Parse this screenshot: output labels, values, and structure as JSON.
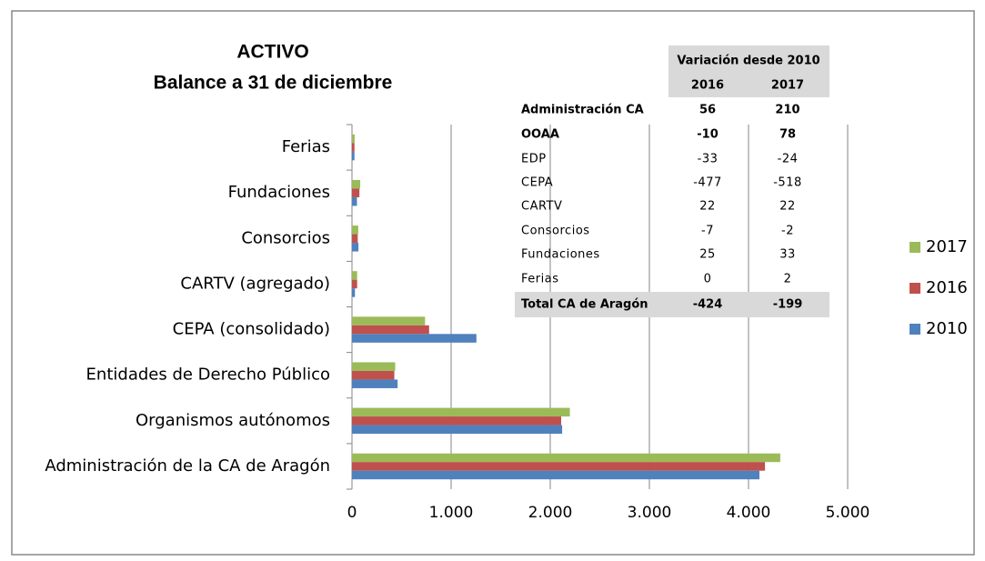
{
  "chart_data": {
    "type": "barh",
    "title": "ACTIVO",
    "subtitle": "Balance a 31 de diciembre",
    "categories": [
      "Ferias",
      "Fundaciones",
      "Consorcios",
      "CARTV (agregado)",
      "CEPA (consolidado)",
      "Entidades de Derecho Público",
      "Organismos autónomos",
      "Administración de la CA de Aragón"
    ],
    "series": [
      {
        "name": "2017",
        "color": "#9bbb59",
        "values": [
          27,
          83,
          63,
          52,
          737,
          436,
          2198,
          4320
        ]
      },
      {
        "name": "2016",
        "color": "#c0504d",
        "values": [
          25,
          75,
          58,
          52,
          778,
          427,
          2110,
          4166
        ]
      },
      {
        "name": "2010",
        "color": "#4f81bd",
        "values": [
          25,
          50,
          65,
          30,
          1255,
          460,
          2120,
          4110
        ]
      }
    ],
    "xlim": [
      0,
      5000
    ],
    "xticks": [
      0,
      {
        "value": 1000,
        "label": "1.000"
      },
      {
        "value": 2000,
        "label": "2.000"
      },
      {
        "value": 3000,
        "label": "3.000"
      },
      {
        "value": 4000,
        "label": "4.000"
      },
      {
        "value": 5000,
        "label": "5.000"
      }
    ],
    "grid": true,
    "legend": "right",
    "table": {
      "header": "Variación desde 2010",
      "columns": [
        "2016",
        "2017"
      ],
      "rows": [
        {
          "label": "Administración CA",
          "values": [
            56,
            210
          ],
          "bold": true
        },
        {
          "label": "OOAA",
          "values": [
            -10,
            78
          ],
          "bold": true
        },
        {
          "label": "EDP",
          "values": [
            -33,
            -24
          ],
          "bold": false
        },
        {
          "label": "CEPA",
          "values": [
            -477,
            -518
          ],
          "bold": false
        },
        {
          "label": "CARTV",
          "values": [
            22,
            22
          ],
          "bold": false
        },
        {
          "label": "Consorcios",
          "values": [
            -7,
            -2
          ],
          "bold": false
        },
        {
          "label": "Fundaciones",
          "values": [
            25,
            33
          ],
          "bold": false
        },
        {
          "label": "Ferias",
          "values": [
            0,
            2
          ],
          "bold": false
        },
        {
          "label": "Total CA de Aragón",
          "values": [
            -424,
            -199
          ],
          "bold": true
        }
      ]
    }
  }
}
